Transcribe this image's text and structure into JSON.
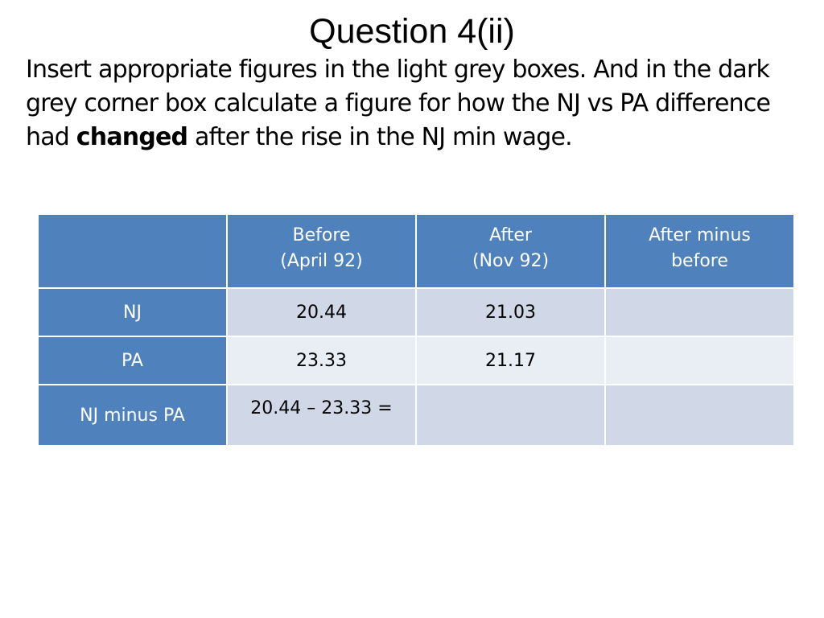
{
  "title": "Question 4(ii)",
  "instructions": {
    "part1": "Insert appropriate figures in the light grey boxes. And in the dark grey corner box calculate a figure for how the NJ vs PA difference had ",
    "bold": "changed",
    "part2": " after the rise in the NJ min wage."
  },
  "table": {
    "headers": {
      "corner": "",
      "before_line1": "Before",
      "before_line2": "(April 92)",
      "after_line1": "After",
      "after_line2": "(Nov 92)",
      "diff_line1": "After minus",
      "diff_line2": "before"
    },
    "rows": [
      {
        "label": "NJ",
        "before": "20.44",
        "after": "21.03",
        "diff": ""
      },
      {
        "label": "PA",
        "before": "23.33",
        "after": "21.17",
        "diff": ""
      },
      {
        "label": "NJ minus PA",
        "before": "20.44 – 23.33 =",
        "after": "",
        "diff": ""
      }
    ]
  },
  "colors": {
    "header_blue": "#4f81bd",
    "cell_dark": "#d0d8e8",
    "cell_light": "#e9edf4"
  }
}
